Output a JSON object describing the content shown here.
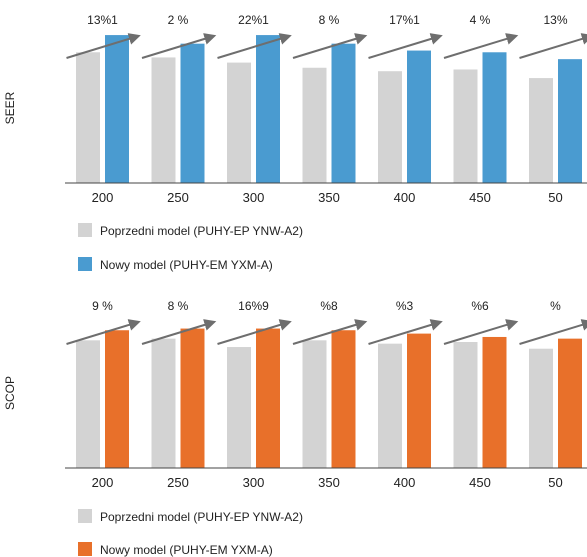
{
  "colors": {
    "previous": "#d3d3d3",
    "new_seer": "#4a9bd0",
    "new_scop": "#e8702a",
    "arrow": "#6e6e6e",
    "axis": "#444444"
  },
  "chart_data": [
    {
      "type": "bar",
      "ylabel": "SEER",
      "categories": [
        "200",
        "250",
        "300",
        "350",
        "400",
        "450",
        "50"
      ],
      "series": [
        {
          "name": "Poprzedni model (PUHY-EP YNW-A2)",
          "values": [
            0.76,
            0.73,
            0.7,
            0.67,
            0.65,
            0.66,
            0.61
          ]
        },
        {
          "name": "Nowy model (PUHY-EM YXM-A)",
          "values": [
            0.86,
            0.81,
            0.86,
            0.81,
            0.77,
            0.76,
            0.72
          ]
        }
      ],
      "percent_labels": [
        "13%1",
        "2 %",
        "22%1",
        "8 %",
        "17%1",
        "4 %",
        "13%"
      ],
      "ylim": [
        0,
        1
      ]
    },
    {
      "type": "bar",
      "ylabel": "SCOP",
      "categories": [
        "200",
        "250",
        "300",
        "350",
        "400",
        "450",
        "50"
      ],
      "series": [
        {
          "name": "Poprzedni model (PUHY-EP YNW-A2)",
          "values": [
            0.76,
            0.77,
            0.72,
            0.76,
            0.74,
            0.75,
            0.71
          ]
        },
        {
          "name": "Nowy model (PUHY-EM YXM-A)",
          "values": [
            0.82,
            0.83,
            0.83,
            0.82,
            0.8,
            0.78,
            0.77
          ]
        }
      ],
      "percent_labels": [
        "9 %",
        "8 %",
        "16%9",
        "%8",
        "%3",
        "%6",
        "%"
      ],
      "ylim": [
        0,
        1
      ]
    }
  ]
}
